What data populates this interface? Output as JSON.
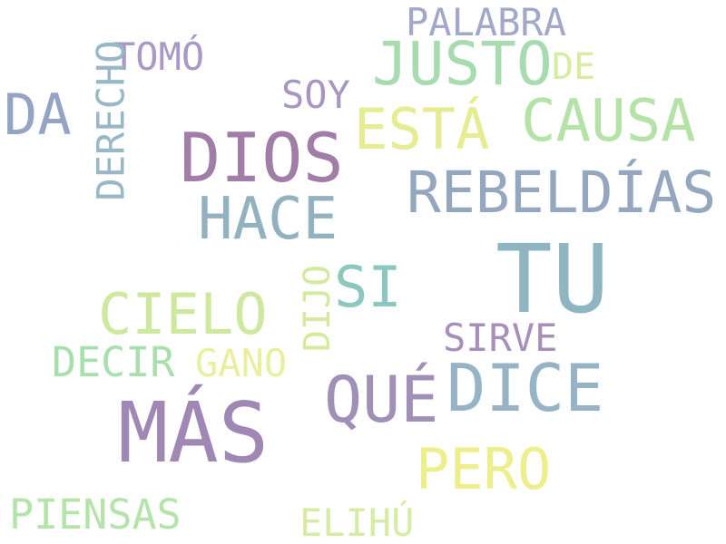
{
  "word_cloud": {
    "words": [
      {
        "text": "PALABRA",
        "color": "#a3a8c8"
      },
      {
        "text": "TOMÓ",
        "color": "#a89ac4"
      },
      {
        "text": "JUSTO",
        "color": "#a8dcb0"
      },
      {
        "text": "DE",
        "color": "#d7eca2"
      },
      {
        "text": "DERECHO",
        "color": "#97b8c4"
      },
      {
        "text": "DA",
        "color": "#93a4c4"
      },
      {
        "text": "SOY",
        "color": "#a896c0"
      },
      {
        "text": "ESTÁ",
        "color": "#e6ec92"
      },
      {
        "text": "CAUSA",
        "color": "#b5e2a7"
      },
      {
        "text": "DIOS",
        "color": "#a07ea8"
      },
      {
        "text": "REBELDÍAS",
        "color": "#95a6bf"
      },
      {
        "text": "HACE",
        "color": "#93b2c0"
      },
      {
        "text": "TU",
        "color": "#8fb4c2"
      },
      {
        "text": "DIJO",
        "color": "#d5ea9f"
      },
      {
        "text": "SI",
        "color": "#8cc8c0"
      },
      {
        "text": "CIELO",
        "color": "#cfe8a0"
      },
      {
        "text": "SIRVE",
        "color": "#a68fb8"
      },
      {
        "text": "DECIR",
        "color": "#a8e0ad"
      },
      {
        "text": "GANO",
        "color": "#e8f0a0"
      },
      {
        "text": "QUÉ",
        "color": "#a090b8"
      },
      {
        "text": "DICE",
        "color": "#96b4c6"
      },
      {
        "text": "MÁS",
        "color": "#a088b4"
      },
      {
        "text": "PERO",
        "color": "#ecef8c"
      },
      {
        "text": "PIENSAS",
        "color": "#b4e4aa"
      },
      {
        "text": "ELIHÚ",
        "color": "#d6eca4"
      }
    ]
  }
}
